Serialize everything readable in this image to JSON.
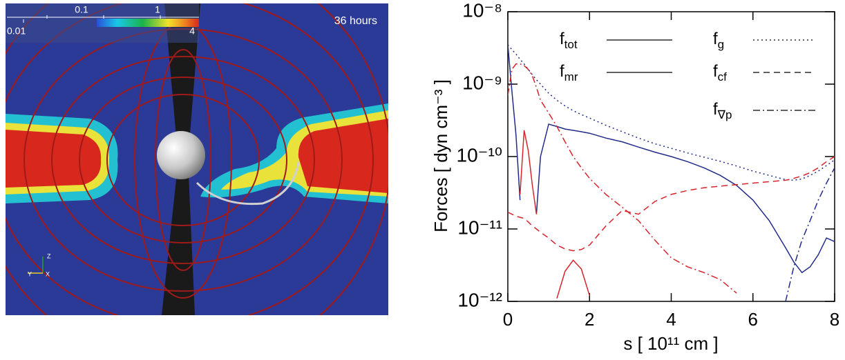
{
  "image_panel": {
    "colorbar_labels": [
      "0.01",
      "0.1",
      "1",
      "4"
    ],
    "time_label": "36 hours",
    "axes_labels": [
      "Z",
      "Y",
      "X"
    ]
  },
  "chart_data": {
    "type": "line",
    "xlabel": "s [ 10¹¹ cm ]",
    "ylabel": "Forces [ dyn cm⁻³ ]",
    "yscale": "log",
    "legend": "upper right",
    "xlim": [
      0,
      8
    ],
    "xticks": [
      0,
      2,
      4,
      6,
      8
    ],
    "ylim": [
      1e-12,
      1e-08
    ],
    "yticks": [
      {
        "value": 1e-12,
        "label": "10⁻¹²"
      },
      {
        "value": 1e-11,
        "label": "10⁻¹¹"
      },
      {
        "value": 1e-10,
        "label": "10⁻¹⁰"
      },
      {
        "value": 1e-09,
        "label": "10⁻⁹"
      },
      {
        "value": 1e-08,
        "label": "10⁻⁸"
      }
    ],
    "x": [
      0,
      0.1,
      0.2,
      0.3,
      0.4,
      0.5,
      0.6,
      0.7,
      0.8,
      1.0,
      1.2,
      1.4,
      1.6,
      1.8,
      2.0,
      2.4,
      2.8,
      3.2,
      3.6,
      4.0,
      4.4,
      4.8,
      5.2,
      5.6,
      6.0,
      6.4,
      6.8,
      7.0,
      7.2,
      7.4,
      7.6,
      7.8,
      8.0
    ],
    "series": [
      {
        "name": "f",
        "subscript": "tot",
        "dash": "solid",
        "parts": [
          {
            "color": "#1f2a8a",
            "values": [
              3.5e-09,
              8e-10,
              2e-10,
              2.5e-11,
              null,
              null,
              null,
              1.6e-11,
              1e-10,
              2.8e-10,
              2.6e-10,
              2.4e-10,
              2.3e-10,
              2.2e-10,
              2.1e-10,
              1.8e-10,
              1.6e-10,
              1.35e-10,
              1.15e-10,
              1e-10,
              8.5e-11,
              7e-11,
              5.5e-11,
              4e-11,
              2.5e-11,
              1.3e-11,
              5.5e-12,
              3.5e-12,
              2.5e-12,
              3e-12,
              4.4e-12,
              7.5e-12,
              6.7e-12
            ]
          },
          {
            "color": "#d8232a",
            "values": [
              null,
              null,
              null,
              3e-11,
              2.3e-10,
              1.2e-10,
              4e-11,
              1.6e-11,
              null,
              null,
              null,
              null,
              null,
              null,
              null,
              null,
              null,
              null,
              null,
              null,
              null,
              null,
              null,
              null,
              null,
              null,
              null,
              null,
              null,
              null,
              null,
              null,
              null
            ]
          }
        ]
      },
      {
        "name": "f",
        "subscript": "mr",
        "dash": "solid",
        "parts": [
          {
            "color": "#d8232a",
            "values": [
              null,
              null,
              null,
              null,
              null,
              null,
              null,
              null,
              null,
              null,
              1.1e-12,
              2.6e-12,
              3.7e-12,
              2.8e-12,
              1.2e-12,
              null,
              null,
              null,
              null,
              null,
              null,
              null,
              null,
              null,
              null,
              null,
              null,
              null,
              null,
              null,
              null,
              null,
              null
            ]
          }
        ]
      },
      {
        "name": "f",
        "subscript": "g",
        "dash": "dotted",
        "parts": [
          {
            "color": "#1f2a8a",
            "values": [
              3.5e-09,
              3e-09,
              2.6e-09,
              2.2e-09,
              1.9e-09,
              1.6e-09,
              1.35e-09,
              1.15e-09,
              1e-09,
              7.5e-10,
              6e-10,
              5e-10,
              4.3e-10,
              3.8e-10,
              3.4e-10,
              2.7e-10,
              2.2e-10,
              1.8e-10,
              1.5e-10,
              1.3e-10,
              1.12e-10,
              9.8e-11,
              8.6e-11,
              7.4e-11,
              6.3e-11,
              5.5e-11,
              4.8e-11,
              4.7e-11,
              4.9e-11,
              5.5e-11,
              6.3e-11,
              7.5e-11,
              9e-11
            ]
          }
        ]
      },
      {
        "name": "f",
        "subscript": "cf",
        "dash": "dashed",
        "parts": [
          {
            "color": "#d8232a",
            "values": [
              1.7e-11,
              1.6e-11,
              1.5e-11,
              1.45e-11,
              1.4e-11,
              1.25e-11,
              1.1e-11,
              1e-11,
              9e-12,
              7.5e-12,
              6e-12,
              5.3e-12,
              5e-12,
              5.2e-12,
              6e-12,
              1.1e-11,
              1.8e-11,
              1.6e-11,
              2.4e-11,
              3e-11,
              3.4e-11,
              3.7e-11,
              3.9e-11,
              4.1e-11,
              4.3e-11,
              4.5e-11,
              4.7e-11,
              5e-11,
              5.4e-11,
              6e-11,
              7e-11,
              8.5e-11,
              1e-10
            ]
          }
        ]
      },
      {
        "name": "f",
        "subscript": "∇p",
        "dash": "dashdot",
        "parts": [
          {
            "color": "#d8232a",
            "values": [
              7e-10,
              1.6e-09,
              1.9e-09,
              1.9e-09,
              1.8e-09,
              1.6e-09,
              1.3e-09,
              9e-10,
              6e-10,
              4e-10,
              2.6e-10,
              1.6e-10,
              1e-10,
              7e-11,
              5e-11,
              3e-11,
              2e-11,
              1.3e-11,
              7e-12,
              4e-12,
              3e-12,
              2.5e-12,
              2e-12,
              1.3e-12,
              null,
              null,
              null,
              null,
              null,
              null,
              null,
              null,
              null
            ]
          },
          {
            "color": "#1f2a8a",
            "values": [
              null,
              null,
              null,
              null,
              null,
              null,
              null,
              null,
              null,
              null,
              null,
              null,
              null,
              null,
              null,
              null,
              null,
              null,
              null,
              null,
              null,
              null,
              null,
              null,
              null,
              null,
              1e-12,
              3e-12,
              7e-12,
              1.3e-11,
              2.5e-11,
              4.3e-11,
              7e-11
            ]
          }
        ]
      }
    ]
  }
}
